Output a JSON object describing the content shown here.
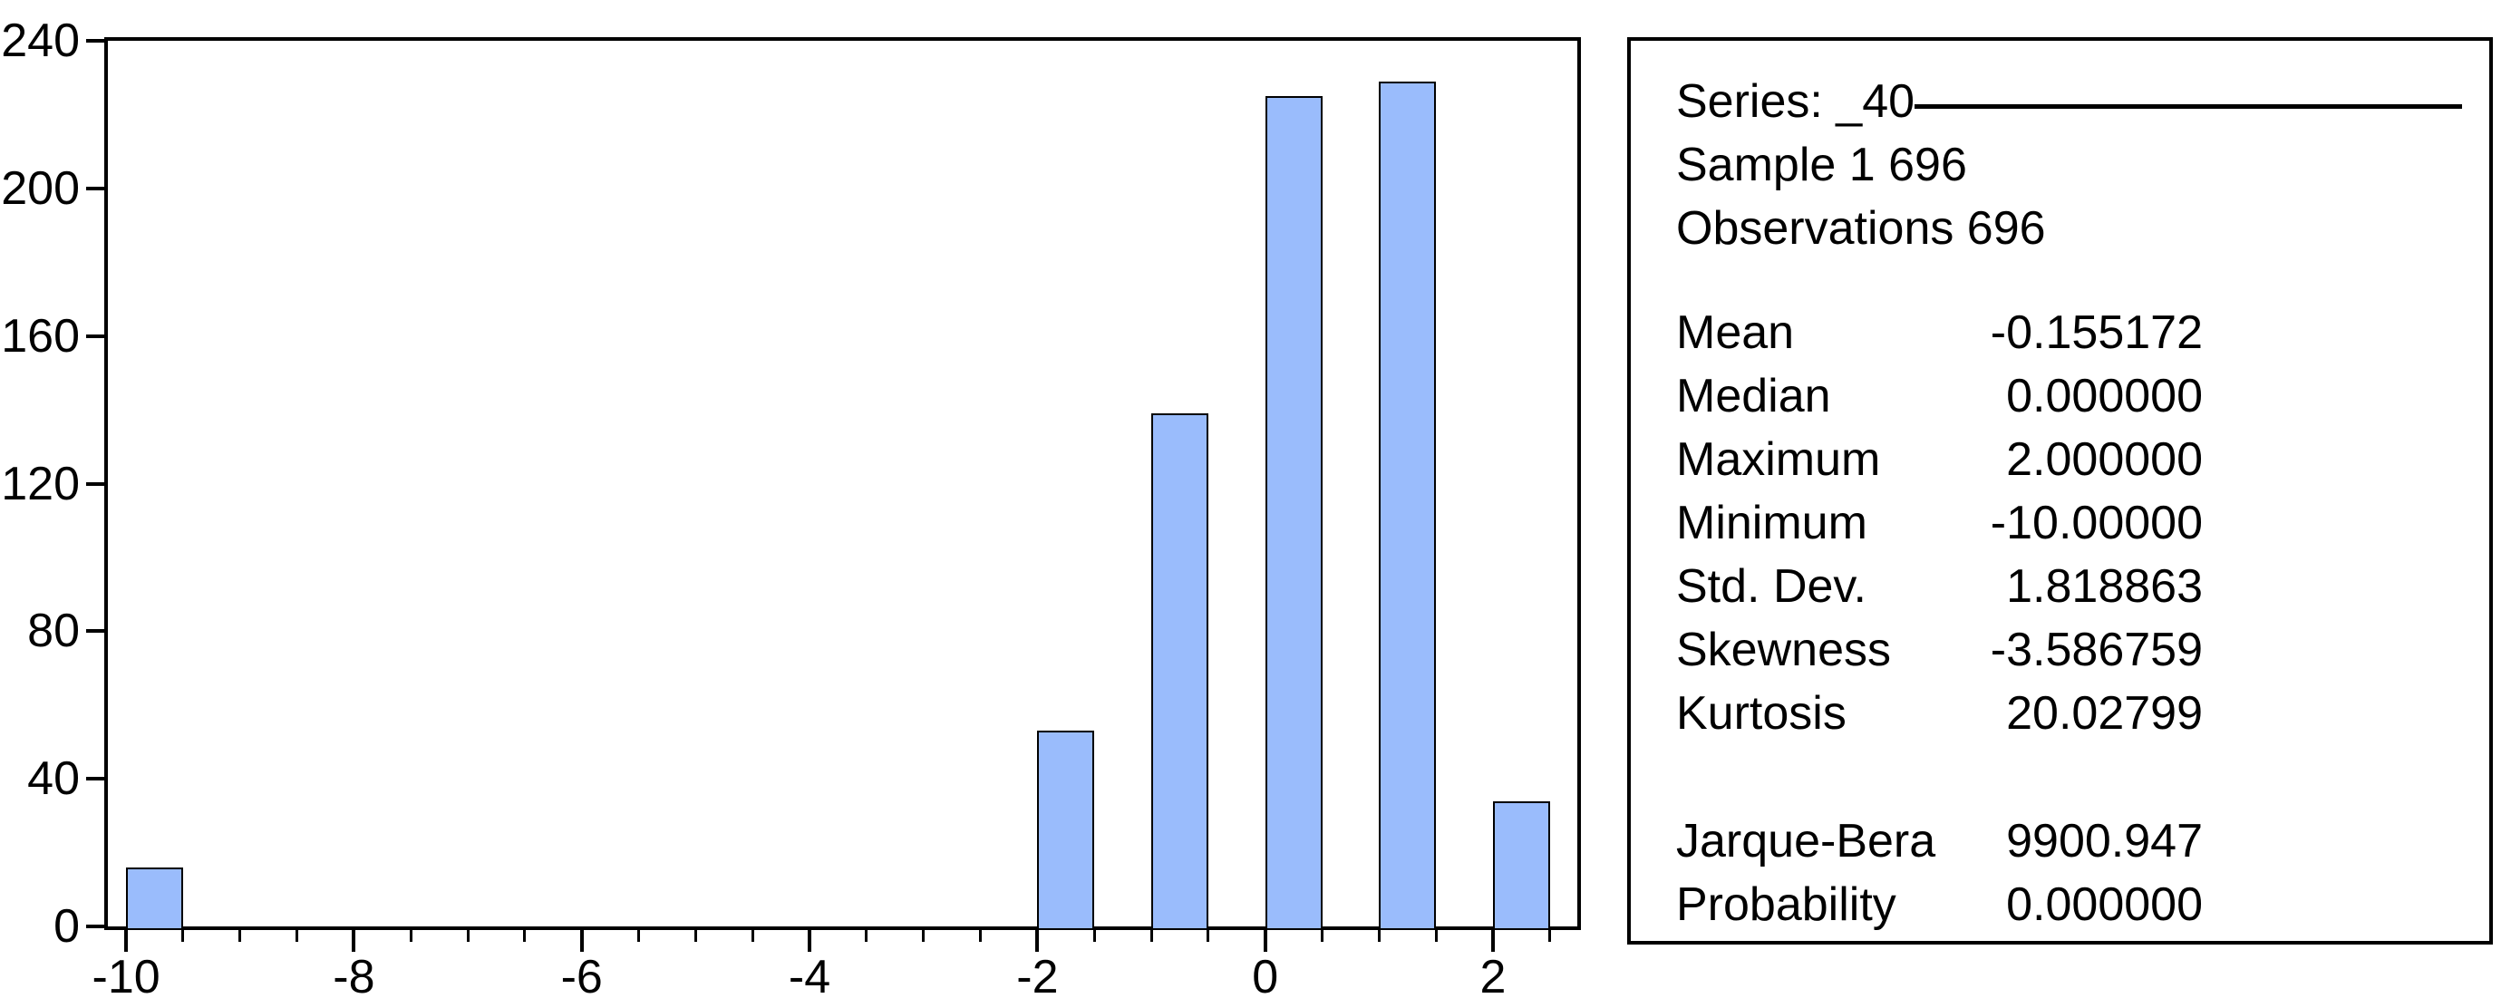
{
  "window": {
    "background": "#ffffff"
  },
  "chart_data": {
    "type": "bar",
    "title": "",
    "xlabel": "",
    "ylabel": "",
    "bins": [
      {
        "x": -10,
        "count": 16
      },
      {
        "x": -2,
        "count": 53
      },
      {
        "x": -1,
        "count": 139
      },
      {
        "x": 0,
        "count": 225
      },
      {
        "x": 1,
        "count": 229
      },
      {
        "x": 2,
        "count": 34
      }
    ],
    "bin_width": 0.5,
    "bar_fill_color": "#9abcfc",
    "bar_border_color": "#000000",
    "grid": false,
    "legend_position": "none",
    "x_axis": {
      "min": -10.16,
      "max": 2.74,
      "major_ticks": [
        {
          "v": -10,
          "label": "-10"
        },
        {
          "v": -8,
          "label": "-8"
        },
        {
          "v": -6,
          "label": "-6"
        },
        {
          "v": -4,
          "label": "-4"
        },
        {
          "v": -2,
          "label": "-2"
        },
        {
          "v": 0,
          "label": "0"
        },
        {
          "v": 2,
          "label": "2"
        }
      ],
      "minor_tick_start": -10,
      "minor_tick_end": 2.5,
      "minor_tick_step": 0.5
    },
    "y_axis": {
      "min": 0,
      "max": 240,
      "ticks": [
        {
          "v": 0,
          "label": "0"
        },
        {
          "v": 40,
          "label": "40"
        },
        {
          "v": 80,
          "label": "80"
        },
        {
          "v": 120,
          "label": "120"
        },
        {
          "v": 160,
          "label": "160"
        },
        {
          "v": 200,
          "label": "200"
        },
        {
          "v": 240,
          "label": "240"
        }
      ]
    }
  },
  "stats_panel": {
    "series_label": "Series: _40",
    "sample": "Sample 1 696",
    "observations": "Observations 696",
    "rows": [
      {
        "label": "Mean",
        "value": "-0.155172"
      },
      {
        "label": "Median",
        "value": "0.000000"
      },
      {
        "label": "Maximum",
        "value": "2.000000"
      },
      {
        "label": "Minimum",
        "value": "-10.00000"
      },
      {
        "label": "Std. Dev.",
        "value": "1.818863"
      },
      {
        "label": "Skewness",
        "value": "-3.586759"
      },
      {
        "label": "Kurtosis",
        "value": "20.02799"
      }
    ],
    "rows2": [
      {
        "label": "Jarque-Bera",
        "value": "9900.947"
      },
      {
        "label": "Probability",
        "value": "0.000000"
      }
    ]
  }
}
